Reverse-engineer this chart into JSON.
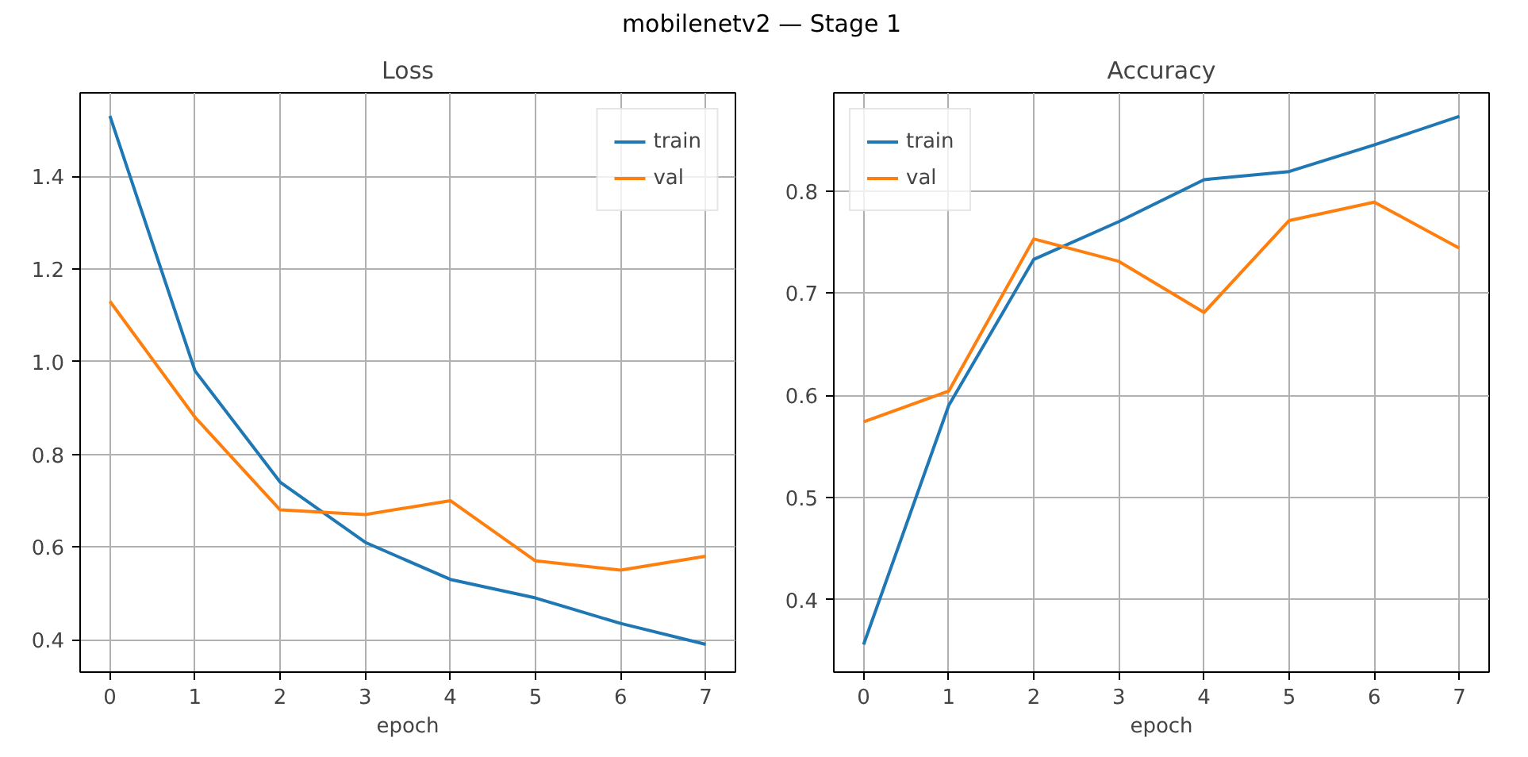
{
  "chart_data": [
    {
      "type": "line",
      "title": "Loss",
      "xlabel": "epoch",
      "annotations": [
        "mobilenetv2 — Stage 1"
      ],
      "x": [
        0,
        1,
        2,
        3,
        4,
        5,
        6,
        7
      ],
      "series": [
        {
          "name": "train",
          "color": "#1f77b4",
          "values": [
            1.53,
            0.98,
            0.74,
            0.61,
            0.53,
            0.49,
            0.435,
            0.39
          ]
        },
        {
          "name": "val",
          "color": "#ff7f0e",
          "values": [
            1.13,
            0.88,
            0.68,
            0.67,
            0.7,
            0.57,
            0.55,
            0.58
          ]
        }
      ],
      "xlim": [
        -0.35,
        7.35
      ],
      "xticks": [
        0,
        1,
        2,
        3,
        4,
        5,
        6,
        7
      ],
      "ylim": [
        0.33,
        1.58
      ],
      "yticks": [
        0.4,
        0.6,
        0.8,
        {
          "value": 1,
          "label": "1.0"
        },
        1.2,
        1.4
      ],
      "grid": true,
      "legend": "top right",
      "line_style": "solid"
    },
    {
      "type": "line",
      "title": "Accuracy",
      "xlabel": "epoch",
      "x": [
        0,
        1,
        2,
        3,
        4,
        5,
        6,
        7
      ],
      "series": [
        {
          "name": "train",
          "color": "#1f77b4",
          "values": [
            0.356,
            0.59,
            0.733,
            0.77,
            0.811,
            0.819,
            0.845,
            0.873
          ]
        },
        {
          "name": "val",
          "color": "#ff7f0e",
          "values": [
            0.574,
            0.604,
            0.753,
            0.731,
            0.681,
            0.771,
            0.789,
            0.744
          ]
        }
      ],
      "xlim": [
        -0.35,
        7.35
      ],
      "xticks": [
        0,
        1,
        2,
        3,
        4,
        5,
        6,
        7
      ],
      "ylim": [
        0.329,
        0.896
      ],
      "yticks": [
        0.4,
        0.5,
        0.6,
        0.7,
        0.8
      ],
      "grid": true,
      "legend": "top left",
      "line_style": "solid"
    }
  ]
}
